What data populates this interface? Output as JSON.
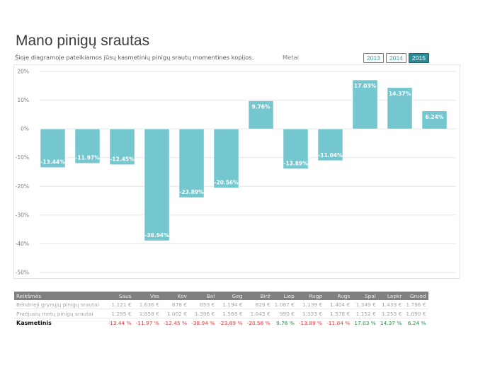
{
  "header": {
    "title": "Mano pinigų srautas",
    "subtitle": "Šioje diagramoje pateikiamos jūsų kasmetinių pinigų srautų momentines kopijos.",
    "years_label": "Metai",
    "year_buttons": [
      {
        "label": "2013",
        "active": false
      },
      {
        "label": "2014",
        "active": false
      },
      {
        "label": "2015",
        "active": true
      }
    ]
  },
  "colors": {
    "bar": "#74c6cf",
    "active_button": "#2e8c99",
    "negative": "#e0393e",
    "positive": "#2e8b4a"
  },
  "chart_data": {
    "type": "bar",
    "title": "",
    "xlabel": "",
    "ylabel": "",
    "categories": [
      "Saus",
      "Vas",
      "Kov",
      "Bal",
      "Geg",
      "Birž",
      "Liep",
      "Rugp",
      "Rugs",
      "Spal",
      "Lapkr",
      "Gruod"
    ],
    "values": [
      -13.44,
      -11.97,
      -12.45,
      -38.94,
      -23.89,
      -20.56,
      9.76,
      -13.89,
      -11.04,
      17.03,
      14.37,
      6.24
    ],
    "data_labels": [
      "-13.44%",
      "-11.97%",
      "-12.45%",
      "-38.94%",
      "-23.89%",
      "-20.56%",
      "9.76%",
      "-13.89%",
      "-11.04%",
      "17.03%",
      "14.37%",
      "6.24%"
    ],
    "ylim": [
      -50,
      20
    ],
    "yticks": [
      20,
      10,
      0,
      -10,
      -20,
      -30,
      -40,
      -50
    ],
    "ytick_labels": [
      "20%",
      "10%",
      "0%",
      "-10%",
      "-20%",
      "-30%",
      "-40%",
      "-50%"
    ],
    "grid": true,
    "legend": "none"
  },
  "table": {
    "header": [
      "Reikšmės",
      "Saus",
      "Vas",
      "Kov",
      "Bal",
      "Geg",
      "Birž",
      "Liep",
      "Rugp",
      "Rugs",
      "Spal",
      "Lapkr",
      "Gruod"
    ],
    "rows": [
      {
        "label": "Bendrieji grynųjų pinigų srautai",
        "values": [
          "1.121 €",
          "1.636 €",
          "878 €",
          "853 €",
          "1.194 €",
          "829 €",
          "1.087 €",
          "1.139 €",
          "1.404 €",
          "1.349 €",
          "1.433 €",
          "1.796 €"
        ]
      },
      {
        "label": "Praėjusių metų pinigų srautai",
        "values": [
          "1.295 €",
          "1.858 €",
          "1.002 €",
          "1.396 €",
          "1.569 €",
          "1.043 €",
          "990 €",
          "1.323 €",
          "1.578 €",
          "1.152 €",
          "1.253 €",
          "1.690 €"
        ]
      }
    ],
    "summary": {
      "label": "Kasmetinis",
      "values": [
        "-13.44 %",
        "-11.97 %",
        "-12.45 %",
        "-38.94 %",
        "-23.89 %",
        "-20.56 %",
        "9.76 %",
        "-13.89 %",
        "-11.04 %",
        "17.03 %",
        "14.37 %",
        "6.24 %"
      ]
    }
  }
}
